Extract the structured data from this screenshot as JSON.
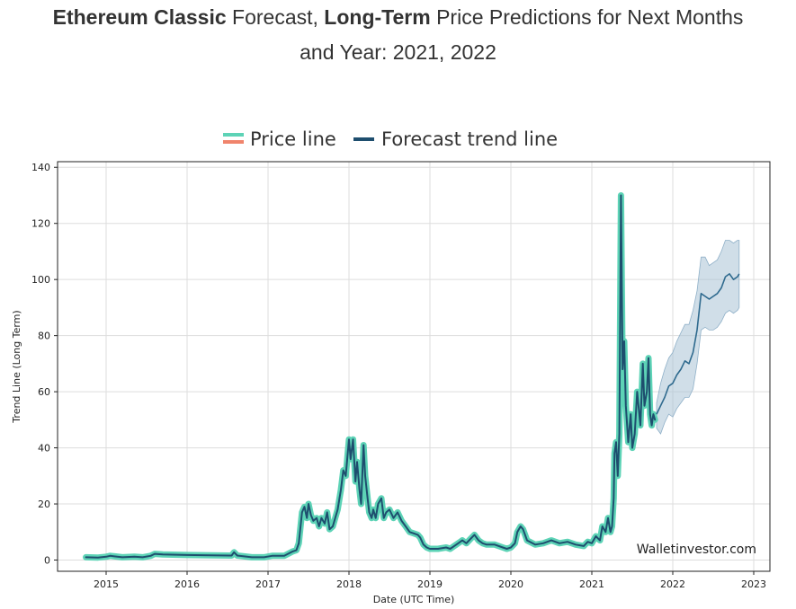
{
  "heading": {
    "coin": "Ethereum Classic",
    "part1": " Forecast, ",
    "term": "Long-Term",
    "part2": " Price Predictions for Next Months",
    "line2": "and Year: 2021, 2022"
  },
  "colors": {
    "price_line": "#5dd3b6",
    "price_line_alt": "#f0846c",
    "forecast_line": "#1e4e6e",
    "forecast_band": "#a9c3d6",
    "grid": "#dddddd",
    "text": "#333333"
  },
  "chart_data": {
    "type": "line",
    "title": "",
    "xlabel": "Date (UTC Time)",
    "ylabel": "Trend Line (Long Term)",
    "xlim": [
      2014.4,
      2023.2
    ],
    "ylim": [
      -4,
      142
    ],
    "x_ticks": [
      2015,
      2016,
      2017,
      2018,
      2019,
      2020,
      2021,
      2022,
      2023
    ],
    "x_tick_labels": [
      "2015",
      "2016",
      "2017",
      "2018",
      "2019",
      "2020",
      "2021",
      "2022",
      "2023"
    ],
    "y_ticks": [
      0,
      20,
      40,
      60,
      80,
      100,
      120,
      140
    ],
    "y_tick_labels": [
      "0",
      "20",
      "40",
      "60",
      "80",
      "100",
      "120",
      "140"
    ],
    "legend": [
      "Price line",
      "Forecast trend line"
    ],
    "legend_position": "top-center",
    "watermark": "Walletinvestor.com",
    "series": [
      {
        "name": "Price line",
        "x": [
          2014.75,
          2014.9,
          2015.0,
          2015.05,
          2015.2,
          2015.35,
          2015.45,
          2015.55,
          2015.6,
          2015.7,
          2016.0,
          2016.3,
          2016.55,
          2016.58,
          2016.62,
          2016.8,
          2016.95,
          2017.05,
          2017.15,
          2017.2,
          2017.3,
          2017.35,
          2017.38,
          2017.42,
          2017.45,
          2017.48,
          2017.5,
          2017.53,
          2017.56,
          2017.6,
          2017.63,
          2017.66,
          2017.7,
          2017.73,
          2017.76,
          2017.8,
          2017.83,
          2017.86,
          2017.9,
          2017.93,
          2017.96,
          2018.0,
          2018.02,
          2018.05,
          2018.08,
          2018.1,
          2018.13,
          2018.15,
          2018.18,
          2018.2,
          2018.23,
          2018.25,
          2018.28,
          2018.3,
          2018.33,
          2018.36,
          2018.4,
          2018.43,
          2018.46,
          2018.5,
          2018.55,
          2018.6,
          2018.65,
          2018.7,
          2018.75,
          2018.8,
          2018.85,
          2018.88,
          2018.92,
          2018.96,
          2019.0,
          2019.1,
          2019.2,
          2019.25,
          2019.3,
          2019.35,
          2019.4,
          2019.45,
          2019.5,
          2019.55,
          2019.6,
          2019.65,
          2019.7,
          2019.8,
          2019.9,
          2019.95,
          2020.0,
          2020.05,
          2020.08,
          2020.12,
          2020.15,
          2020.2,
          2020.3,
          2020.4,
          2020.5,
          2020.6,
          2020.7,
          2020.8,
          2020.9,
          2020.95,
          2021.0,
          2021.05,
          2021.1,
          2021.13,
          2021.17,
          2021.2,
          2021.23,
          2021.25,
          2021.27,
          2021.28,
          2021.3,
          2021.32,
          2021.34,
          2021.36,
          2021.38,
          2021.4,
          2021.42,
          2021.45,
          2021.48,
          2021.5,
          2021.53,
          2021.56,
          2021.6,
          2021.63,
          2021.65,
          2021.68,
          2021.7,
          2021.72,
          2021.74,
          2021.76,
          2021.78
        ],
        "y": [
          1.0,
          0.9,
          1.2,
          1.5,
          1.0,
          1.2,
          1.0,
          1.5,
          2.2,
          2.0,
          1.8,
          1.7,
          1.6,
          2.8,
          1.6,
          1.0,
          1.0,
          1.5,
          1.5,
          1.5,
          3.0,
          3.5,
          6.0,
          17.0,
          19.0,
          15.0,
          20.0,
          16.0,
          14.0,
          15.0,
          12.0,
          15.0,
          13.0,
          17.0,
          11.0,
          12.0,
          15.0,
          18.0,
          25.0,
          32.0,
          30.0,
          43.0,
          36.0,
          43.0,
          28.0,
          35.0,
          25.0,
          20.0,
          41.0,
          30.0,
          22.0,
          17.0,
          15.0,
          18.0,
          15.0,
          20.0,
          22.0,
          15.0,
          17.0,
          18.0,
          15.0,
          17.0,
          14.0,
          12.0,
          10.0,
          9.5,
          9.0,
          8.0,
          5.5,
          4.5,
          4.0,
          4.0,
          4.5,
          4.0,
          5.0,
          6.0,
          7.0,
          6.0,
          7.5,
          9.0,
          7.0,
          6.0,
          5.5,
          5.5,
          4.5,
          4.0,
          4.5,
          6.0,
          10.0,
          12.0,
          11.0,
          7.0,
          5.5,
          6.0,
          7.0,
          6.0,
          6.5,
          5.5,
          5.0,
          6.5,
          6.0,
          8.5,
          7.0,
          12.0,
          10.0,
          15.0,
          10.0,
          12.0,
          22.0,
          38.0,
          42.0,
          30.0,
          45.0,
          130.0,
          68.0,
          78.0,
          55.0,
          42.0,
          52.0,
          40.0,
          45.0,
          60.0,
          48.0,
          70.0,
          55.0,
          60.0,
          72.0,
          52.0,
          48.0,
          52.0,
          50.0
        ]
      },
      {
        "name": "Forecast trend line",
        "x": [
          2021.8,
          2021.85,
          2021.9,
          2021.95,
          2022.0,
          2022.05,
          2022.1,
          2022.15,
          2022.2,
          2022.25,
          2022.3,
          2022.35,
          2022.4,
          2022.45,
          2022.5,
          2022.55,
          2022.6,
          2022.65,
          2022.7,
          2022.75,
          2022.8,
          2022.82
        ],
        "y": [
          52,
          55,
          58,
          62,
          63,
          66,
          68,
          71,
          70,
          74,
          82,
          95,
          94,
          93,
          94,
          95,
          97,
          101,
          102,
          100,
          101,
          102
        ],
        "band_low": [
          47,
          45,
          49,
          52,
          51,
          54,
          56,
          58,
          58,
          61,
          70,
          82,
          83,
          82,
          82,
          83,
          85,
          88,
          89,
          88,
          89,
          90
        ],
        "band_high": [
          56,
          63,
          68,
          72,
          74,
          78,
          81,
          84,
          84,
          89,
          96,
          108,
          108,
          105,
          106,
          107,
          110,
          114,
          114,
          113,
          114,
          114
        ]
      }
    ]
  }
}
